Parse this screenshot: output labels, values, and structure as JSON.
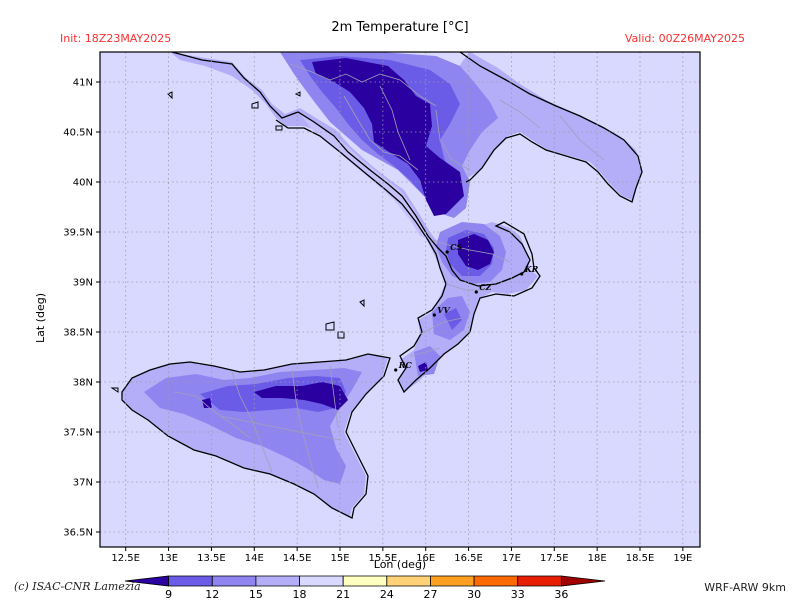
{
  "header": {
    "title": "2m Temperature [°C]",
    "init": "Init: 18Z23MAY2025",
    "valid": "Valid: 00Z26MAY2025"
  },
  "axes": {
    "xlabel": "Lon (deg)",
    "ylabel": "Lat (deg)",
    "xlim": [
      12.2,
      19.2
    ],
    "ylim": [
      36.35,
      41.3
    ],
    "xticks": [
      12.5,
      13,
      13.5,
      14,
      14.5,
      15,
      15.5,
      16,
      16.5,
      17,
      17.5,
      18,
      18.5,
      19
    ],
    "xtick_labels": [
      "12.5E",
      "13E",
      "13.5E",
      "14E",
      "14.5E",
      "15E",
      "15.5E",
      "16E",
      "16.5E",
      "17E",
      "17.5E",
      "18E",
      "18.5E",
      "19E"
    ],
    "yticks": [
      36.5,
      37,
      37.5,
      38,
      38.5,
      39,
      39.5,
      40,
      40.5,
      41
    ],
    "ytick_labels": [
      "36.5N",
      "37N",
      "37.5N",
      "38N",
      "38.5N",
      "39N",
      "39.5N",
      "40N",
      "40.5N",
      "41N"
    ],
    "grid": true
  },
  "cities": [
    {
      "label": "CS",
      "lon": 16.25,
      "lat": 39.3
    },
    {
      "label": "KR",
      "lon": 17.12,
      "lat": 39.08
    },
    {
      "label": "CZ",
      "lon": 16.59,
      "lat": 38.9
    },
    {
      "label": "VV",
      "lon": 16.1,
      "lat": 38.67
    },
    {
      "label": "RC",
      "lon": 15.65,
      "lat": 38.12
    }
  ],
  "colorbar": {
    "ticks": [
      "9",
      "12",
      "15",
      "18",
      "21",
      "24",
      "27",
      "30",
      "33",
      "36"
    ],
    "colors": [
      "#2a00a0",
      "#6a5ce6",
      "#8f85f0",
      "#b4adf7",
      "#d9d8ff",
      "#ffffc0",
      "#ffd278",
      "#ffa020",
      "#ff6a00",
      "#e81e00",
      "#a00000"
    ]
  },
  "footer": {
    "credit": "(c) ISAC-CNR Lamezia",
    "model": "WRF-ARW 9km"
  },
  "colors": {
    "sea": "#d9d8ff",
    "t15_18": "#b4adf7",
    "t12_15": "#8f85f0",
    "t9_12": "#6a5ce6",
    "t_below_9": "#2a00a0",
    "header_text": "#ff3030"
  }
}
